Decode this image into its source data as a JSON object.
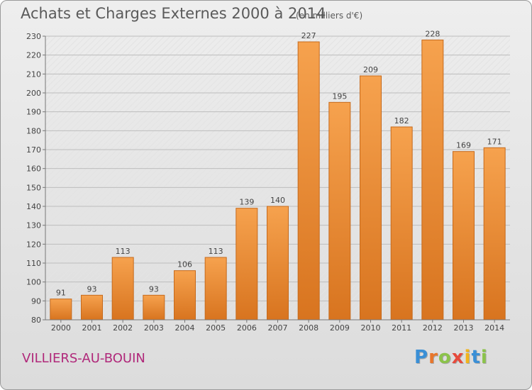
{
  "header": {
    "title": "Achats et Charges Externes 2000 à 2014",
    "subtitle": "(en milliers d'€)"
  },
  "footer": {
    "commune": "VILLIERS-AU-BOUIN",
    "logo_letters": [
      "P",
      "r",
      "o",
      "x",
      "i",
      "t",
      "i"
    ],
    "logo_colors": [
      "#3a8fd6",
      "#e8762b",
      "#8bc34a",
      "#e64a3c",
      "#f2b51c",
      "#3a8fd6",
      "#8bc34a"
    ]
  },
  "chart_data": {
    "type": "bar",
    "title": "Achats et Charges Externes 2000 à 2014",
    "subtitle": "(en milliers d'€)",
    "xlabel": "",
    "ylabel": "",
    "categories": [
      "2000",
      "2001",
      "2002",
      "2003",
      "2004",
      "2005",
      "2006",
      "2007",
      "2008",
      "2009",
      "2010",
      "2011",
      "2012",
      "2013",
      "2014"
    ],
    "values": [
      91,
      93,
      113,
      93,
      106,
      113,
      139,
      140,
      227,
      195,
      209,
      182,
      228,
      169,
      171
    ],
    "ylim": [
      80,
      230
    ],
    "yticks": [
      80,
      90,
      100,
      110,
      120,
      130,
      140,
      150,
      160,
      170,
      180,
      190,
      200,
      210,
      220,
      230
    ],
    "grid": true,
    "bar_color_top": "#f6a24e",
    "bar_color_bottom": "#d8741f",
    "bar_stroke": "#c66a1c"
  }
}
